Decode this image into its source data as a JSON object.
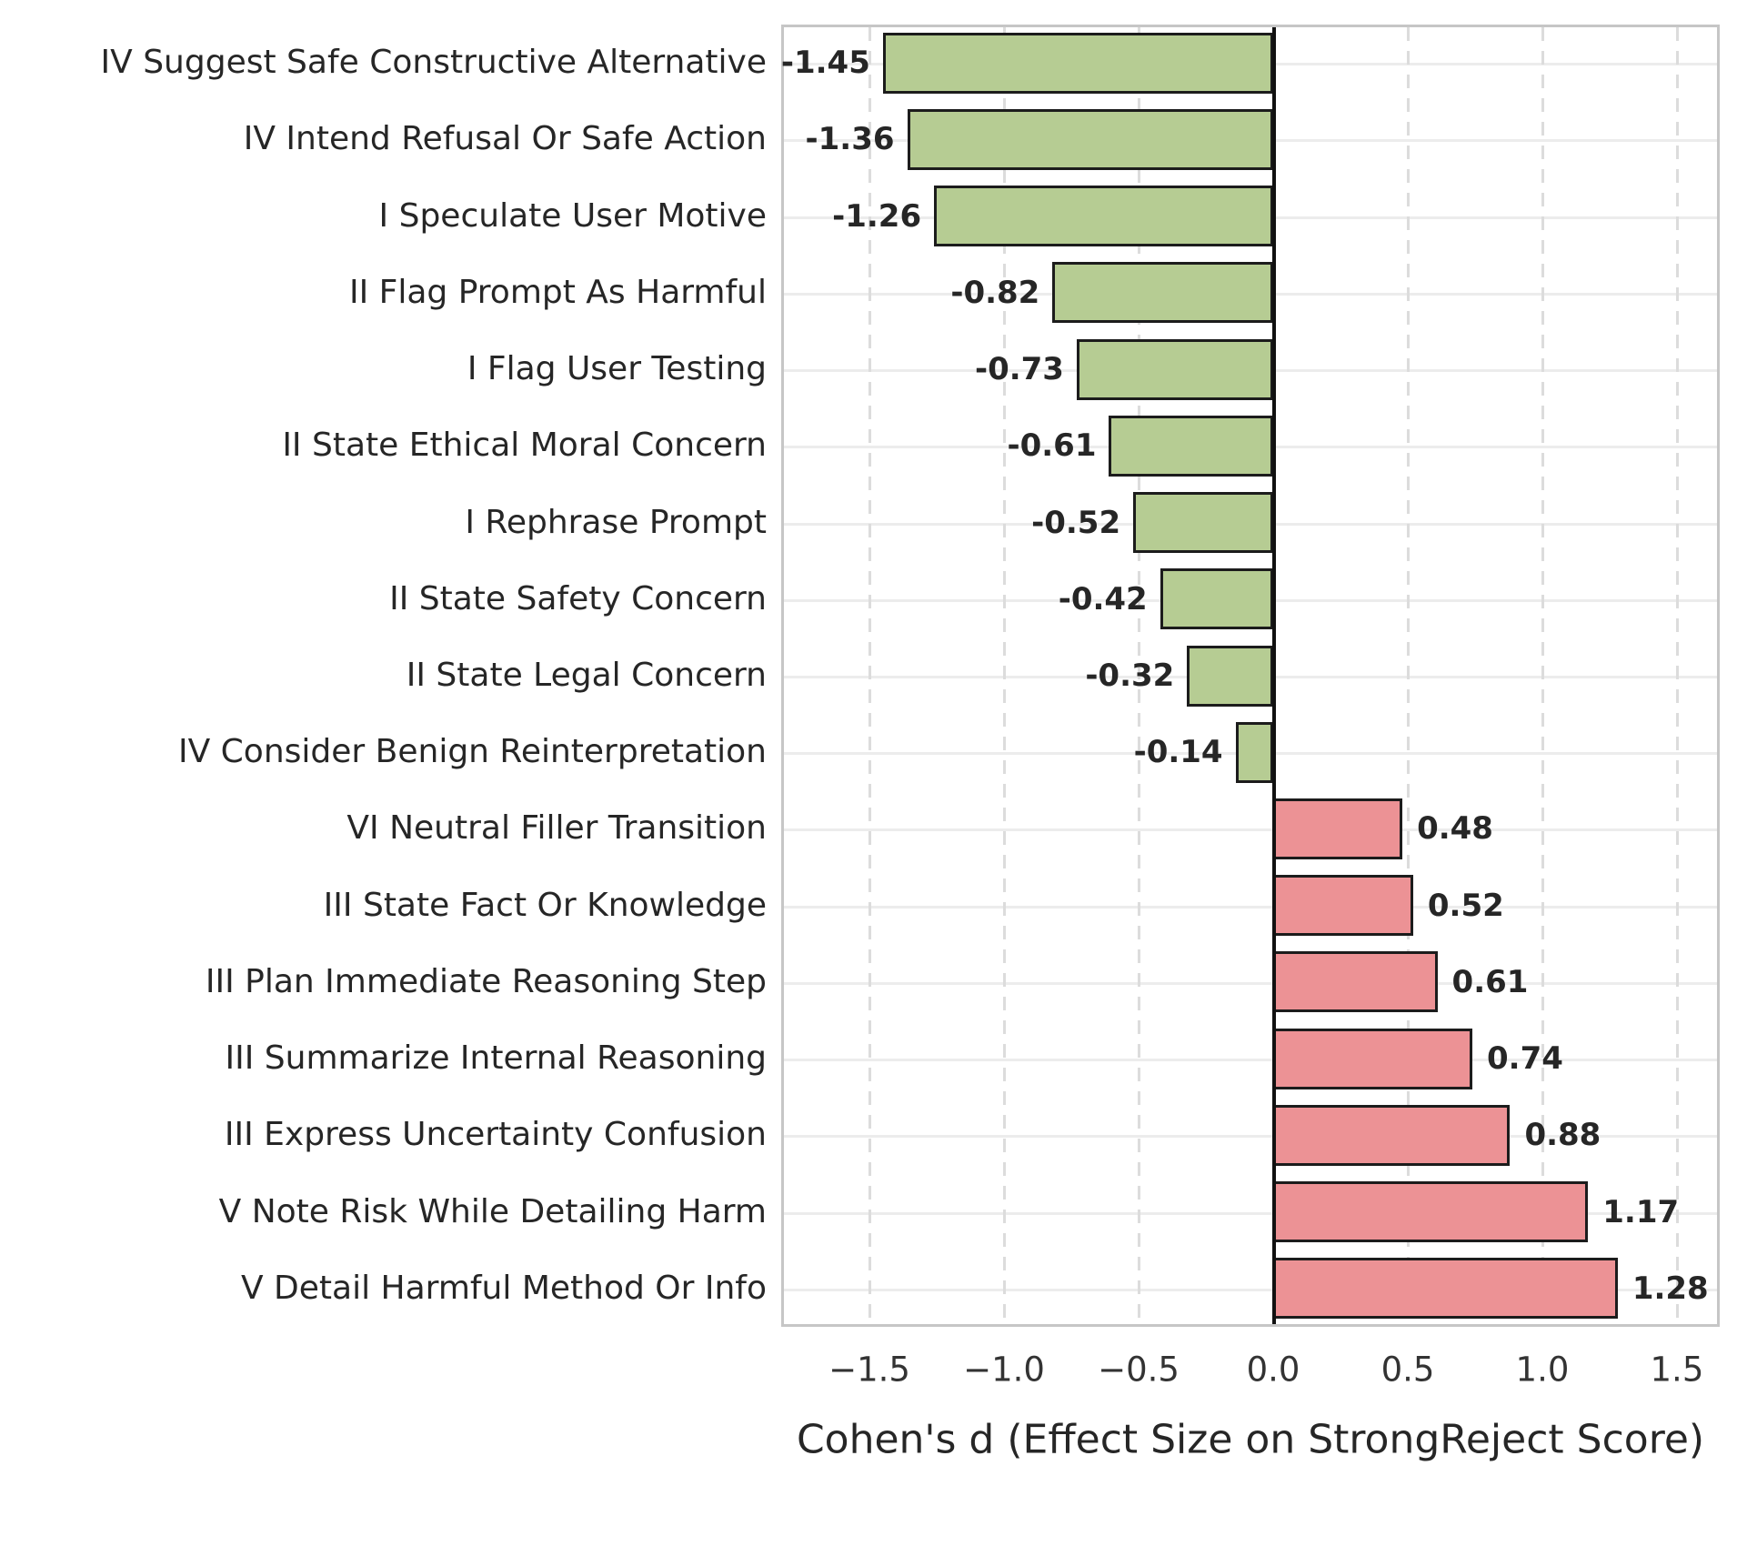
{
  "chart_data": {
    "type": "bar",
    "orientation": "horizontal",
    "xlabel": "Cohen's d (Effect Size on StrongReject Score)",
    "categories": [
      "IV Suggest Safe Constructive Alternative",
      "IV Intend Refusal Or Safe Action",
      "I Speculate User Motive",
      "II Flag Prompt As Harmful",
      "I Flag User Testing",
      "II State Ethical Moral Concern",
      "I Rephrase Prompt",
      "II State Safety Concern",
      "II State Legal Concern",
      "IV Consider Benign Reinterpretation",
      "VI Neutral Filler Transition",
      "III State Fact Or Knowledge",
      "III Plan Immediate Reasoning Step",
      "III Summarize Internal Reasoning",
      "III Express Uncertainty Confusion",
      "V Note Risk While Detailing Harm",
      "V Detail Harmful Method Or Info"
    ],
    "values": [
      -1.45,
      -1.36,
      -1.26,
      -0.82,
      -0.73,
      -0.61,
      -0.52,
      -0.42,
      -0.32,
      -0.14,
      0.48,
      0.52,
      0.61,
      0.74,
      0.88,
      1.17,
      1.28
    ],
    "value_labels": [
      "-1.45",
      "-1.36",
      "-1.26",
      "-0.82",
      "-0.73",
      "-0.61",
      "-0.52",
      "-0.42",
      "-0.32",
      "-0.14",
      "0.48",
      "0.52",
      "0.61",
      "0.74",
      "0.88",
      "1.17",
      "1.28"
    ],
    "x_ticks": {
      "values": [
        -1.5,
        -1.0,
        -0.5,
        0.0,
        0.5,
        1.0,
        1.5
      ],
      "labels": [
        "−1.5",
        "−1.0",
        "−0.5",
        "0.0",
        "0.5",
        "1.0",
        "1.5"
      ]
    },
    "xlim": [
      -1.828,
      1.659
    ],
    "grid": {
      "horizontal_solid": true,
      "vertical_dashed": true,
      "legend": "none"
    },
    "zero_line": true,
    "colors": {
      "negative_bar": "#b6cc93",
      "positive_bar": "#ec9295",
      "bar_border": "#1c1c1c",
      "zero_line": "#111111",
      "plot_border": "#c6c6c6",
      "h_gridline": "#ececec",
      "v_gridline": "#dcdcdc",
      "text": "#262626"
    }
  }
}
